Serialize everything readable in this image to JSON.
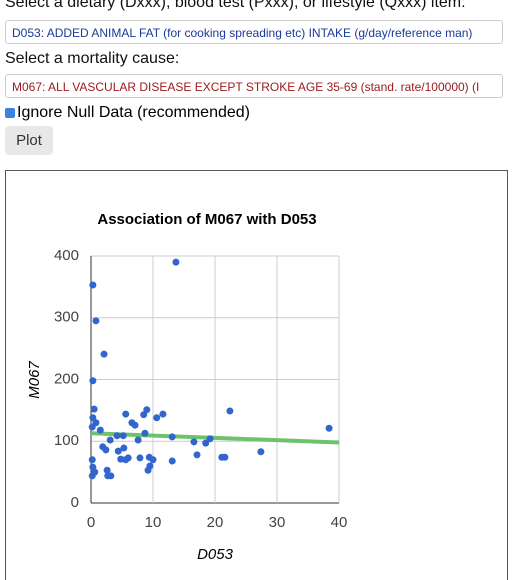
{
  "ui": {
    "diet_prompt": "Select a dietary (Dxxx), blood test (Pxxx), or lifestyle (Qxxx) item:",
    "diet_selection": "D053: ADDED ANIMAL FAT (for cooking spreading etc) INTAKE (g/day/reference man)",
    "cause_prompt": "Select a mortality cause:",
    "cause_selection": "M067: ALL VASCULAR DISEASE EXCEPT STROKE AGE 35-69 (stand. rate/100000) (I",
    "checkbox_label": "Ignore Null Data (recommended)",
    "button": "Plot"
  },
  "chart_data": {
    "type": "scatter",
    "title": "Association of M067 with D053",
    "x_label": "D053",
    "y_label": "M067",
    "color": "#3366cc",
    "x": [
      13.7,
      0.3,
      0.8,
      2.1,
      0.3,
      0.5,
      0.3,
      0.8,
      0.2,
      1.5,
      0.2,
      0.3,
      0.6,
      0.2,
      1.9,
      2.4,
      3.1,
      2.6,
      2.7,
      3.2,
      4.2,
      5.2,
      5.6,
      4.4,
      4.8,
      5.3,
      5.6,
      6.0,
      6.6,
      7.1,
      7.6,
      7.9,
      8.5,
      9.0,
      8.7,
      9.2,
      9.5,
      10.0,
      9.4,
      10.6,
      11.6,
      13.1,
      13.1,
      16.6,
      17.1,
      18.5,
      19.2,
      21.1,
      21.6,
      22.4,
      27.4,
      38.4
    ],
    "values": [
      390,
      353,
      295,
      241,
      198,
      152,
      138,
      130,
      123,
      118,
      70,
      58,
      50,
      44,
      91,
      86,
      102,
      53,
      44,
      44,
      109,
      109,
      144,
      84,
      71,
      89,
      70,
      73,
      130,
      126,
      102,
      73,
      143,
      151,
      113,
      53,
      60,
      70,
      74,
      138,
      144,
      107,
      68,
      99,
      78,
      97,
      104,
      74,
      74,
      149,
      83,
      121
    ],
    "trendline": {
      "x": [
        0,
        40
      ],
      "values": [
        113,
        98
      ],
      "color": "#6cc36c"
    },
    "xlim": [
      0,
      40
    ],
    "ylim": [
      0,
      400
    ],
    "xticks": [
      0,
      10,
      20,
      30,
      40
    ],
    "yticks": [
      0,
      100,
      200,
      300,
      400
    ],
    "grid": true
  }
}
